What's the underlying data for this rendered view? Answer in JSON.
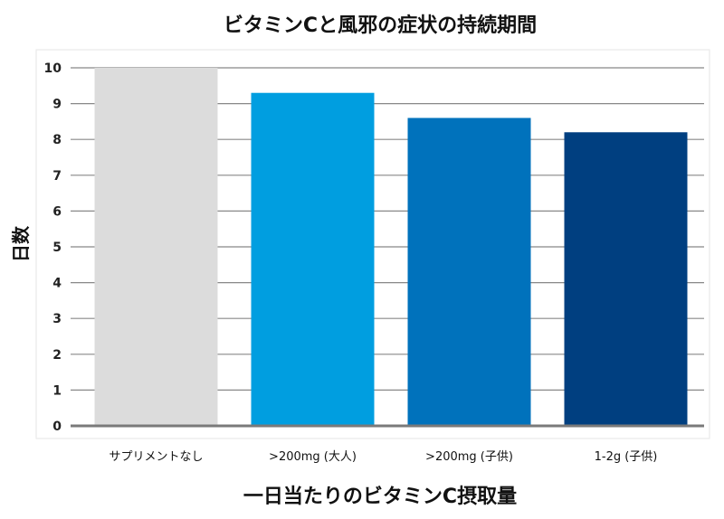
{
  "chart_data": {
    "type": "bar",
    "title": "ビタミンCと風邪の症状の持続期間",
    "xlabel": "一日当たりのビタミンC摂取量",
    "ylabel": "日数",
    "categories": [
      "サプリメントなし",
      ">200mg (大人)",
      ">200mg (子供)",
      "1-2g (子供)"
    ],
    "values": [
      10,
      9.3,
      8.6,
      8.2
    ],
    "ylim": [
      0,
      10
    ],
    "yticks": [
      "0",
      "1",
      "2",
      "3",
      "4",
      "5",
      "6",
      "7",
      "8",
      "9",
      "10"
    ],
    "grid": true,
    "legend": "none",
    "colors": [
      "#dcdcdc",
      "#009ee0",
      "#0072bc",
      "#003f80"
    ],
    "gridColor": "#888888",
    "axisColor": "#7a7a7a"
  }
}
